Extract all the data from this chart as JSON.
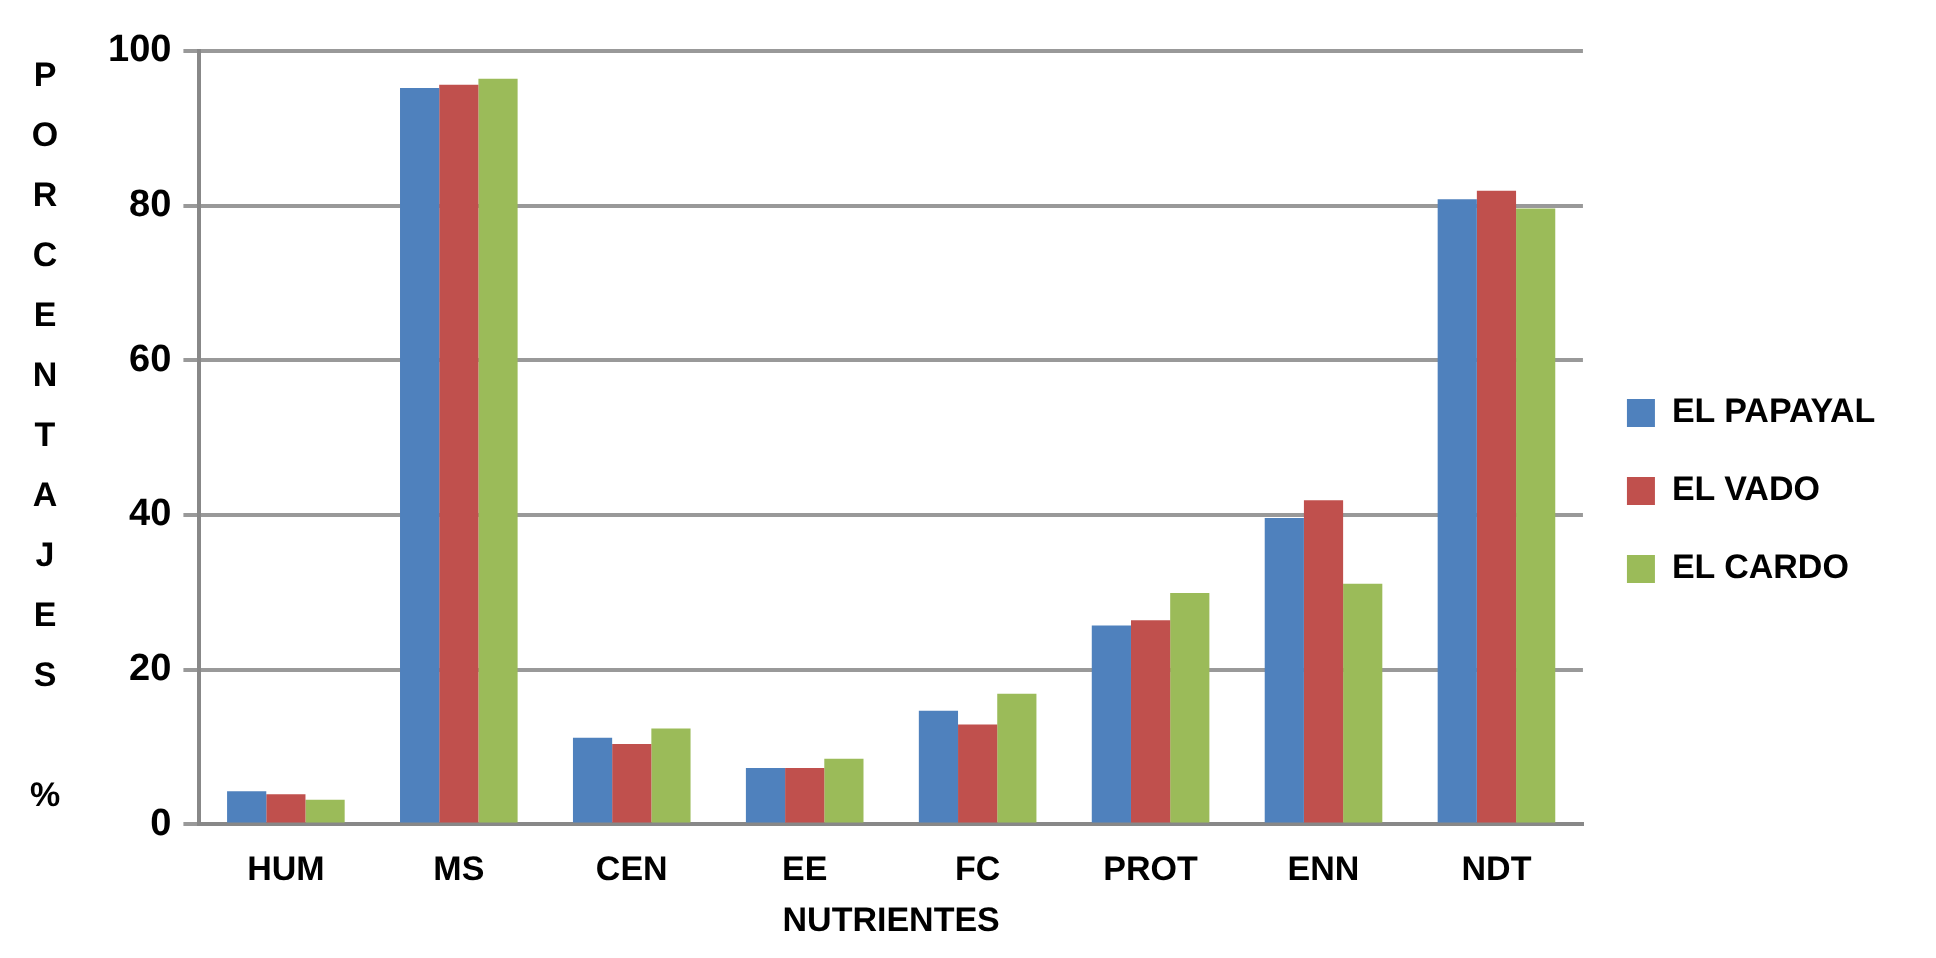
{
  "chart_data": {
    "type": "bar",
    "xlabel": "NUTRIENTES",
    "ylabel": "PORCENTAJES %",
    "categories": [
      "HUM",
      "MS",
      "CEN",
      "EE",
      "FC",
      "PROT",
      "ENN",
      "NDT"
    ],
    "series": [
      {
        "name": "EL PAPAYAL",
        "color": "#4f81bd",
        "values": [
          4.3,
          95.2,
          11.2,
          7.3,
          14.7,
          25.7,
          39.6,
          80.8
        ]
      },
      {
        "name": "EL VADO",
        "color": "#c0504d",
        "values": [
          3.9,
          95.6,
          10.4,
          7.3,
          12.9,
          26.4,
          41.9,
          81.9
        ]
      },
      {
        "name": "EL CARDO",
        "color": "#9bbb59",
        "values": [
          3.2,
          96.4,
          12.4,
          8.5,
          16.9,
          29.9,
          31.1,
          79.6
        ]
      }
    ],
    "ylim": [
      0,
      100
    ],
    "yticks": [
      0,
      20,
      40,
      60,
      80,
      100
    ],
    "grid": "y",
    "legend": "right"
  }
}
